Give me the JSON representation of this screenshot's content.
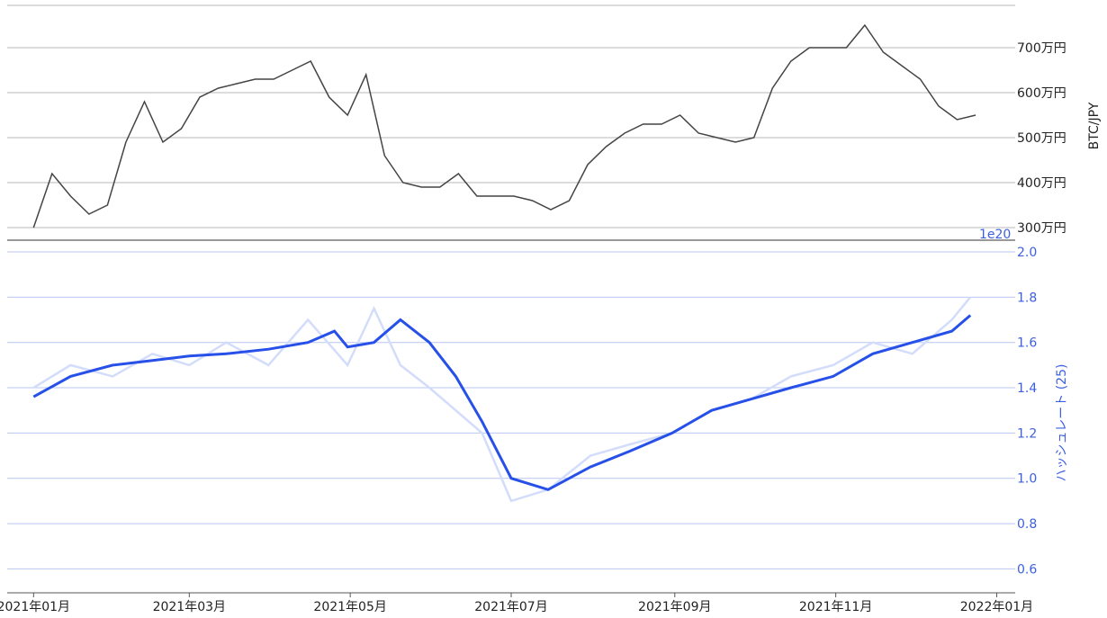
{
  "chart_data": [
    {
      "type": "line",
      "ylabel": "BTC/JPY",
      "ylim": [
        2900000,
        7900000
      ],
      "y_ticks": [
        {
          "value": 3000000,
          "label": "300万円"
        },
        {
          "value": 4000000,
          "label": "400万円"
        },
        {
          "value": 5000000,
          "label": "500万円"
        },
        {
          "value": 6000000,
          "label": "600万円"
        },
        {
          "value": 7000000,
          "label": "700万円"
        }
      ],
      "grid": true,
      "y_axis_side": "right",
      "colors": {
        "line": "#444444",
        "grid": "#b8b8b8"
      },
      "series": [
        {
          "x": [
            "2021-01-01",
            "2021-01-08",
            "2021-01-15",
            "2021-01-22",
            "2021-01-29",
            "2021-02-05",
            "2021-02-12",
            "2021-02-19",
            "2021-02-26",
            "2021-03-05",
            "2021-03-12",
            "2021-03-19",
            "2021-03-26",
            "2021-04-02",
            "2021-04-09",
            "2021-04-16",
            "2021-04-23",
            "2021-04-30",
            "2021-05-07",
            "2021-05-14",
            "2021-05-21",
            "2021-05-28",
            "2021-06-04",
            "2021-06-11",
            "2021-06-18",
            "2021-06-25",
            "2021-07-02",
            "2021-07-09",
            "2021-07-16",
            "2021-07-23",
            "2021-07-30",
            "2021-08-06",
            "2021-08-13",
            "2021-08-20",
            "2021-08-27",
            "2021-09-03",
            "2021-09-10",
            "2021-09-17",
            "2021-09-24",
            "2021-10-01",
            "2021-10-08",
            "2021-10-15",
            "2021-10-22",
            "2021-10-29",
            "2021-11-05",
            "2021-11-12",
            "2021-11-19",
            "2021-11-26",
            "2021-12-03",
            "2021-12-10",
            "2021-12-17",
            "2021-12-24"
          ],
          "values": [
            3000000,
            4200000,
            3700000,
            3300000,
            3500000,
            4900000,
            5800000,
            4900000,
            5200000,
            5900000,
            6100000,
            6200000,
            6300000,
            6300000,
            6500000,
            6700000,
            5900000,
            5500000,
            6400000,
            4600000,
            4000000,
            3900000,
            3900000,
            4200000,
            3700000,
            3700000,
            3700000,
            3600000,
            3400000,
            3600000,
            4400000,
            4800000,
            5100000,
            5300000,
            5300000,
            5500000,
            5100000,
            5000000,
            4900000,
            5000000,
            6100000,
            6700000,
            7000000,
            7000000,
            7000000,
            7500000,
            6900000,
            6600000,
            6300000,
            5700000,
            5400000,
            5500000
          ]
        }
      ]
    },
    {
      "type": "line",
      "ylabel": "ハッシュレート (25)",
      "y_scale_label": "1e20",
      "ylim": [
        0.55,
        2.0
      ],
      "y_ticks": [
        {
          "value": 0.6,
          "label": "0.6"
        },
        {
          "value": 0.8,
          "label": "0.8"
        },
        {
          "value": 1.0,
          "label": "1.0"
        },
        {
          "value": 1.2,
          "label": "1.2"
        },
        {
          "value": 1.4,
          "label": "1.4"
        },
        {
          "value": 1.6,
          "label": "1.6"
        },
        {
          "value": 1.8,
          "label": "1.8"
        },
        {
          "value": 2.0,
          "label": "2.0"
        }
      ],
      "xlim": [
        "2020-12-22",
        "2022-01-08"
      ],
      "x_ticks": [
        {
          "value": "2021-01-01",
          "label": "2021年01月"
        },
        {
          "value": "2021-03-01",
          "label": "2021年03月"
        },
        {
          "value": "2021-05-01",
          "label": "2021年05月"
        },
        {
          "value": "2021-07-01",
          "label": "2021年07月"
        },
        {
          "value": "2021-09-01",
          "label": "2021年09月"
        },
        {
          "value": "2021-11-01",
          "label": "2021年11月"
        },
        {
          "value": "2022-01-01",
          "label": "2022年01月"
        }
      ],
      "grid": true,
      "y_axis_side": "right",
      "colors": {
        "raw": "#d3ddfb",
        "smoothed": "#2650e8",
        "grid": "#b9c7f2",
        "text": "#3b5fe0"
      },
      "series": [
        {
          "x": [
            "2021-01-01",
            "2021-01-15",
            "2021-01-31",
            "2021-02-15",
            "2021-03-01",
            "2021-03-15",
            "2021-03-31",
            "2021-04-15",
            "2021-04-30",
            "2021-05-10",
            "2021-05-20",
            "2021-05-31",
            "2021-06-10",
            "2021-06-20",
            "2021-07-01",
            "2021-07-15",
            "2021-07-31",
            "2021-08-15",
            "2021-08-31",
            "2021-09-15",
            "2021-09-30",
            "2021-10-15",
            "2021-10-31",
            "2021-11-15",
            "2021-11-30",
            "2021-12-15",
            "2021-12-22"
          ],
          "values": [
            1.4,
            1.5,
            1.45,
            1.55,
            1.5,
            1.6,
            1.5,
            1.7,
            1.5,
            1.75,
            1.5,
            1.4,
            1.3,
            1.2,
            0.9,
            0.95,
            1.1,
            1.15,
            1.2,
            1.3,
            1.35,
            1.45,
            1.5,
            1.6,
            1.55,
            1.7,
            1.8
          ]
        },
        {
          "x": [
            "2021-01-01",
            "2021-01-15",
            "2021-01-31",
            "2021-02-15",
            "2021-03-01",
            "2021-03-15",
            "2021-03-31",
            "2021-04-15",
            "2021-04-25",
            "2021-04-30",
            "2021-05-10",
            "2021-05-20",
            "2021-05-31",
            "2021-06-10",
            "2021-06-20",
            "2021-07-01",
            "2021-07-15",
            "2021-07-31",
            "2021-08-15",
            "2021-08-31",
            "2021-09-15",
            "2021-09-30",
            "2021-10-15",
            "2021-10-31",
            "2021-11-15",
            "2021-11-30",
            "2021-12-15",
            "2021-12-22"
          ],
          "values": [
            1.36,
            1.45,
            1.5,
            1.52,
            1.54,
            1.55,
            1.57,
            1.6,
            1.65,
            1.58,
            1.6,
            1.7,
            1.6,
            1.45,
            1.25,
            1.0,
            0.95,
            1.05,
            1.12,
            1.2,
            1.3,
            1.35,
            1.4,
            1.45,
            1.55,
            1.6,
            1.65,
            1.72
          ]
        }
      ]
    }
  ]
}
